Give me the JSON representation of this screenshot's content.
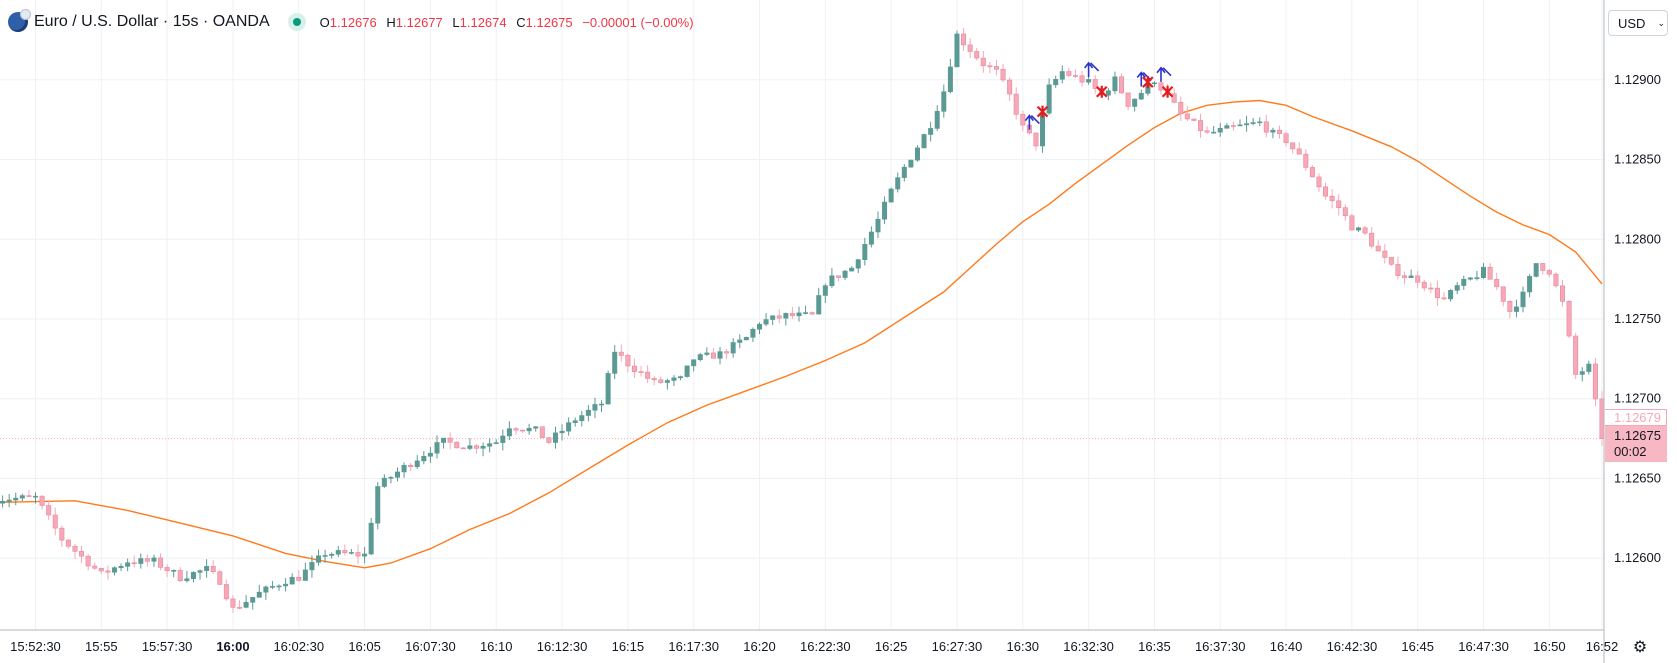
{
  "legend": {
    "symbol_title": "Euro / U.S. Dollar · 15s · OANDA",
    "open_label": "O",
    "open": "1.12676",
    "high_label": "H",
    "high": "1.12677",
    "low_label": "L",
    "low": "1.12674",
    "close_label": "C",
    "close": "1.12675",
    "change": "−0.00001 (−0.00%)",
    "logo_icon": "currency-flag-icon",
    "status_icon": "market-open-dot-icon"
  },
  "toolbar": {
    "currency": "USD",
    "currency_icon": "chevron-down-icon",
    "settings_icon": "gear-icon"
  },
  "price_scale": {
    "last_value_label": "1.12679",
    "current_price": "1.12675",
    "countdown": "00:02"
  },
  "colors": {
    "up": "#5b9a94",
    "down": "#f7a8b8",
    "ma": "#ff7a1a",
    "grid": "#eef1f6",
    "axis_text": "#131722",
    "signal_arrow": "#2c33c9",
    "signal_cross": "#e31d1d"
  },
  "chart_data": {
    "type": "candlestick",
    "title": "Euro / U.S. Dollar · 15s · OANDA",
    "x": {
      "start": "15:51:00",
      "end": "16:52:00",
      "bar_interval_seconds": 15
    },
    "ylim": [
      1.12555,
      1.12945
    ],
    "y_ticks": [
      "1.12900",
      "1.12850",
      "1.12800",
      "1.12750",
      "1.12700",
      "1.12650",
      "1.12600"
    ],
    "x_ticks": [
      {
        "time": "15:52:30",
        "label": "15:52:30"
      },
      {
        "time": "15:55:00",
        "label": "15:55"
      },
      {
        "time": "15:57:30",
        "label": "15:57:30"
      },
      {
        "time": "16:00:00",
        "label": "16:00",
        "bold": true
      },
      {
        "time": "16:02:30",
        "label": "16:02:30"
      },
      {
        "time": "16:05:00",
        "label": "16:05"
      },
      {
        "time": "16:07:30",
        "label": "16:07:30"
      },
      {
        "time": "16:10:00",
        "label": "16:10"
      },
      {
        "time": "16:12:30",
        "label": "16:12:30"
      },
      {
        "time": "16:15:00",
        "label": "16:15"
      },
      {
        "time": "16:17:30",
        "label": "16:17:30"
      },
      {
        "time": "16:20:00",
        "label": "16:20"
      },
      {
        "time": "16:22:30",
        "label": "16:22:30"
      },
      {
        "time": "16:25:00",
        "label": "16:25"
      },
      {
        "time": "16:27:30",
        "label": "16:27:30"
      },
      {
        "time": "16:30:00",
        "label": "16:30"
      },
      {
        "time": "16:32:30",
        "label": "16:32:30"
      },
      {
        "time": "16:35:00",
        "label": "16:35"
      },
      {
        "time": "16:37:30",
        "label": "16:37:30"
      },
      {
        "time": "16:40:00",
        "label": "16:40"
      },
      {
        "time": "16:42:30",
        "label": "16:42:30"
      },
      {
        "time": "16:45:00",
        "label": "16:45"
      },
      {
        "time": "16:47:30",
        "label": "16:47:30"
      },
      {
        "time": "16:50:00",
        "label": "16:50"
      },
      {
        "time": "16:52:00",
        "label": "16:52"
      }
    ],
    "close_path": [
      [
        "15:51:00",
        1.12637
      ],
      [
        "15:52:30",
        1.12638
      ],
      [
        "15:53:30",
        1.12612
      ],
      [
        "15:55:00",
        1.1259
      ],
      [
        "15:56:00",
        1.12598
      ],
      [
        "15:57:00",
        1.12598
      ],
      [
        "15:58:00",
        1.12588
      ],
      [
        "15:59:00",
        1.12593
      ],
      [
        "15:59:30",
        1.12586
      ],
      [
        "16:00:00",
        1.12568
      ],
      [
        "16:01:00",
        1.12578
      ],
      [
        "16:02:00",
        1.12586
      ],
      [
        "16:02:30",
        1.12588
      ],
      [
        "16:03:30",
        1.12603
      ],
      [
        "16:04:00",
        1.12603
      ],
      [
        "16:05:00",
        1.12602
      ],
      [
        "16:05:30",
        1.12645
      ],
      [
        "16:06:30",
        1.12657
      ],
      [
        "16:07:30",
        1.12668
      ],
      [
        "16:08:00",
        1.12673
      ],
      [
        "16:09:00",
        1.1267
      ],
      [
        "16:10:00",
        1.12673
      ],
      [
        "16:10:30",
        1.12683
      ],
      [
        "16:11:30",
        1.1268
      ],
      [
        "16:12:00",
        1.12673
      ],
      [
        "16:13:00",
        1.12687
      ],
      [
        "16:14:00",
        1.12697
      ],
      [
        "16:14:30",
        1.1273
      ],
      [
        "16:15:00",
        1.12722
      ],
      [
        "16:16:00",
        1.1271
      ],
      [
        "16:17:00",
        1.12712
      ],
      [
        "16:17:30",
        1.12725
      ],
      [
        "16:18:30",
        1.12728
      ],
      [
        "16:19:30",
        1.12738
      ],
      [
        "16:20:00",
        1.12748
      ],
      [
        "16:21:00",
        1.12752
      ],
      [
        "16:22:00",
        1.12752
      ],
      [
        "16:22:30",
        1.12773
      ],
      [
        "16:23:30",
        1.12782
      ],
      [
        "16:24:00",
        1.12797
      ],
      [
        "16:24:30",
        1.12812
      ],
      [
        "16:25:00",
        1.1283
      ],
      [
        "16:25:30",
        1.12845
      ],
      [
        "16:26:00",
        1.12858
      ],
      [
        "16:26:30",
        1.12872
      ],
      [
        "16:27:00",
        1.12893
      ],
      [
        "16:27:30",
        1.12928
      ],
      [
        "16:28:30",
        1.1291
      ],
      [
        "16:29:00",
        1.12905
      ],
      [
        "16:29:30",
        1.1289
      ],
      [
        "16:30:00",
        1.1287
      ],
      [
        "16:30:30",
        1.1286
      ],
      [
        "16:31:00",
        1.12895
      ],
      [
        "16:31:30",
        1.12905
      ],
      [
        "16:32:30",
        1.12898
      ],
      [
        "16:33:00",
        1.1289
      ],
      [
        "16:33:30",
        1.129
      ],
      [
        "16:34:00",
        1.12885
      ],
      [
        "16:34:30",
        1.12892
      ],
      [
        "16:35:00",
        1.129
      ],
      [
        "16:35:30",
        1.1289
      ],
      [
        "16:36:00",
        1.12878
      ],
      [
        "16:36:30",
        1.12872
      ],
      [
        "16:37:00",
        1.12866
      ],
      [
        "16:38:00",
        1.1287
      ],
      [
        "16:39:00",
        1.12873
      ],
      [
        "16:39:30",
        1.12866
      ],
      [
        "16:40:00",
        1.12862
      ],
      [
        "16:40:30",
        1.12852
      ],
      [
        "16:41:00",
        1.1284
      ],
      [
        "16:41:30",
        1.12827
      ],
      [
        "16:42:00",
        1.1282
      ],
      [
        "16:42:30",
        1.12808
      ],
      [
        "16:43:00",
        1.12803
      ],
      [
        "16:43:30",
        1.12792
      ],
      [
        "16:44:00",
        1.12782
      ],
      [
        "16:44:30",
        1.12777
      ],
      [
        "16:45:00",
        1.12775
      ],
      [
        "16:45:30",
        1.12768
      ],
      [
        "16:46:00",
        1.12762
      ],
      [
        "16:46:30",
        1.1277
      ],
      [
        "16:47:00",
        1.12775
      ],
      [
        "16:47:30",
        1.1278
      ],
      [
        "16:48:00",
        1.1277
      ],
      [
        "16:48:30",
        1.12755
      ],
      [
        "16:49:00",
        1.12765
      ],
      [
        "16:49:30",
        1.12785
      ],
      [
        "16:50:00",
        1.1278
      ],
      [
        "16:50:30",
        1.1276
      ],
      [
        "16:51:00",
        1.12715
      ],
      [
        "16:51:30",
        1.1272
      ],
      [
        "16:52:00",
        1.12675
      ]
    ],
    "series": [
      {
        "type": "line",
        "points": [
          [
            "15:51:00",
            1.12635
          ],
          [
            "15:54:00",
            1.12636
          ],
          [
            "15:56:00",
            1.1263
          ],
          [
            "15:58:00",
            1.12622
          ],
          [
            "16:00:00",
            1.12614
          ],
          [
            "16:02:00",
            1.12603
          ],
          [
            "16:03:30",
            1.12598
          ],
          [
            "16:05:00",
            1.12594
          ],
          [
            "16:06:00",
            1.12597
          ],
          [
            "16:07:30",
            1.12606
          ],
          [
            "16:09:00",
            1.12618
          ],
          [
            "16:10:30",
            1.12628
          ],
          [
            "16:12:00",
            1.12641
          ],
          [
            "16:13:30",
            1.12656
          ],
          [
            "16:15:00",
            1.12671
          ],
          [
            "16:16:30",
            1.12685
          ],
          [
            "16:18:00",
            1.12696
          ],
          [
            "16:19:30",
            1.12705
          ],
          [
            "16:21:00",
            1.12714
          ],
          [
            "16:22:30",
            1.12724
          ],
          [
            "16:24:00",
            1.12735
          ],
          [
            "16:25:30",
            1.12751
          ],
          [
            "16:27:00",
            1.12767
          ],
          [
            "16:28:00",
            1.12782
          ],
          [
            "16:29:00",
            1.12797
          ],
          [
            "16:30:00",
            1.12811
          ],
          [
            "16:31:00",
            1.12822
          ],
          [
            "16:32:00",
            1.12835
          ],
          [
            "16:33:00",
            1.12847
          ],
          [
            "16:34:00",
            1.12859
          ],
          [
            "16:35:00",
            1.1287
          ],
          [
            "16:36:00",
            1.12879
          ],
          [
            "16:37:00",
            1.12884
          ],
          [
            "16:38:00",
            1.12886
          ],
          [
            "16:39:00",
            1.12887
          ],
          [
            "16:40:00",
            1.12884
          ],
          [
            "16:41:00",
            1.12877
          ],
          [
            "16:42:30",
            1.12868
          ],
          [
            "16:44:00",
            1.12858
          ],
          [
            "16:45:00",
            1.12849
          ],
          [
            "16:46:00",
            1.12838
          ],
          [
            "16:47:00",
            1.12827
          ],
          [
            "16:48:00",
            1.12817
          ],
          [
            "16:49:00",
            1.12809
          ],
          [
            "16:50:00",
            1.12803
          ],
          [
            "16:51:00",
            1.12792
          ],
          [
            "16:52:00",
            1.12772
          ]
        ]
      }
    ],
    "current_price": 1.12675,
    "last_value": 1.12679,
    "signals": [
      {
        "time": "16:30:15",
        "type": "up-arrow"
      },
      {
        "time": "16:30:45",
        "type": "cross"
      },
      {
        "time": "16:32:30",
        "type": "up-arrow"
      },
      {
        "time": "16:33:00",
        "type": "cross"
      },
      {
        "time": "16:34:30",
        "type": "up-arrow"
      },
      {
        "time": "16:34:45",
        "type": "cross"
      },
      {
        "time": "16:35:15",
        "type": "up-arrow"
      },
      {
        "time": "16:35:30",
        "type": "cross"
      }
    ],
    "grid": true
  }
}
